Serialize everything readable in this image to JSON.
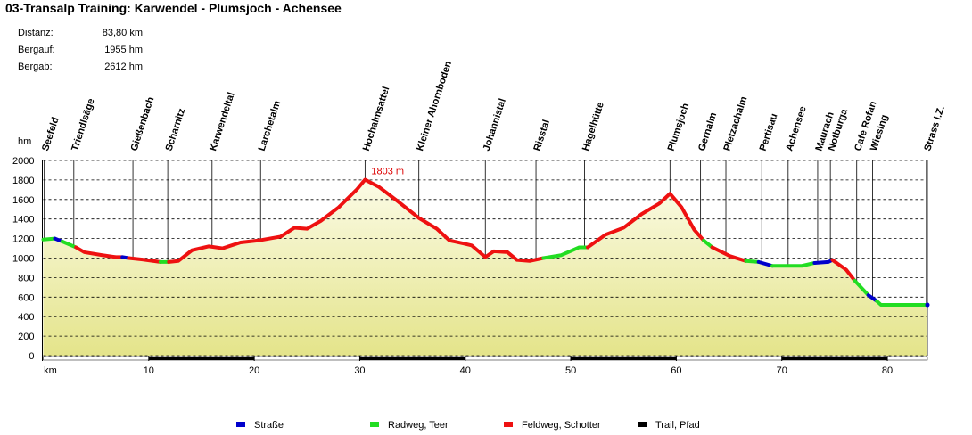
{
  "chart_data": {
    "type": "elevation-profile",
    "title": "03-Transalp Training: Karwendel - Plumsjoch - Achensee",
    "stats": [
      {
        "label": "Distanz:",
        "value": "83,80 km"
      },
      {
        "label": "Bergauf:",
        "value": "1955 hm"
      },
      {
        "label": "Bergab:",
        "value": "2612 hm"
      }
    ],
    "ylabel": "hm",
    "xlabel": "km",
    "xlim": [
      0,
      83.8
    ],
    "ylim": [
      0,
      2000
    ],
    "xticks": [
      10,
      20,
      30,
      40,
      50,
      60,
      70,
      80
    ],
    "yticks": [
      0,
      200,
      400,
      600,
      800,
      1000,
      1200,
      1400,
      1600,
      1800,
      2000
    ],
    "grid": true,
    "legend": [
      {
        "name": "Straße",
        "color": "#0000cc"
      },
      {
        "name": "Radweg, Teer",
        "color": "#22dd22"
      },
      {
        "name": "Feldweg, Schotter",
        "color": "#ee1111"
      },
      {
        "name": "Trail, Pfad",
        "color": "#000000"
      }
    ],
    "annotation": {
      "text": "1803 m",
      "x": 30.5,
      "y": 1803,
      "color": "#dd0000"
    },
    "waypoints": [
      {
        "label": "Seefeld",
        "x": 0.1
      },
      {
        "label": "Triendlsäge",
        "x": 2.9
      },
      {
        "label": "Gießenbach",
        "x": 8.5
      },
      {
        "label": "Scharnitz",
        "x": 11.8
      },
      {
        "label": "Karwendeltal",
        "x": 16.0
      },
      {
        "label": "Larchetalm",
        "x": 20.6
      },
      {
        "label": "Hochalmsattel",
        "x": 30.5
      },
      {
        "label": "Kleiner Ahornboden",
        "x": 35.6
      },
      {
        "label": "Johannistal",
        "x": 41.9
      },
      {
        "label": "Risstal",
        "x": 46.7
      },
      {
        "label": "Hagelhütte",
        "x": 51.3
      },
      {
        "label": "Plumsjoch",
        "x": 59.4
      },
      {
        "label": "Gernalm",
        "x": 62.3
      },
      {
        "label": "Pletzachalm",
        "x": 64.7
      },
      {
        "label": "Pertisau",
        "x": 68.1
      },
      {
        "label": "Achensee",
        "x": 70.6
      },
      {
        "label": "Maurach",
        "x": 73.4
      },
      {
        "label": "Notburga",
        "x": 74.6
      },
      {
        "label": "Cafe Rofan",
        "x": 77.1
      },
      {
        "label": "Wiesing",
        "x": 78.6
      },
      {
        "label": "Strass i.Z.",
        "x": 83.7
      }
    ],
    "profile": {
      "x": [
        0,
        1.1,
        1.8,
        3.1,
        3.9,
        5.6,
        6.9,
        7.5,
        8.1,
        9.4,
        11.1,
        11.9,
        12.8,
        14.1,
        15.7,
        17.0,
        18.7,
        20.4,
        22.5,
        23.8,
        25.0,
        26.3,
        28.0,
        29.7,
        30.5,
        31.8,
        33.5,
        35.6,
        37.3,
        38.5,
        39.8,
        40.6,
        41.9,
        42.7,
        44.0,
        44.9,
        46.1,
        47.4,
        49.1,
        50.8,
        51.6,
        53.3,
        55.0,
        56.7,
        58.4,
        59.4,
        60.5,
        61.7,
        62.6,
        63.4,
        65.1,
        66.6,
        67.8,
        69.1,
        71.9,
        73.1,
        74.4,
        74.8,
        76.1,
        76.9,
        78.2,
        79.0,
        79.4,
        83.8
      ],
      "values": [
        1190,
        1200,
        1170,
        1110,
        1060,
        1030,
        1010,
        1010,
        1000,
        985,
        960,
        960,
        970,
        1080,
        1120,
        1100,
        1160,
        1180,
        1220,
        1310,
        1300,
        1380,
        1520,
        1700,
        1803,
        1730,
        1590,
        1410,
        1300,
        1180,
        1150,
        1130,
        1010,
        1070,
        1060,
        980,
        970,
        1000,
        1030,
        1110,
        1110,
        1240,
        1310,
        1450,
        1560,
        1660,
        1520,
        1290,
        1180,
        1110,
        1020,
        970,
        960,
        920,
        920,
        950,
        960,
        980,
        880,
        770,
        620,
        560,
        520,
        520
      ],
      "surface": [
        1,
        0,
        1,
        2,
        2,
        2,
        2,
        0,
        2,
        2,
        1,
        2,
        2,
        2,
        2,
        2,
        2,
        2,
        2,
        2,
        2,
        2,
        2,
        2,
        2,
        2,
        2,
        2,
        2,
        2,
        2,
        2,
        2,
        2,
        2,
        2,
        2,
        1,
        1,
        1,
        2,
        2,
        2,
        2,
        2,
        2,
        2,
        2,
        1,
        2,
        2,
        1,
        0,
        1,
        1,
        0,
        0,
        2,
        2,
        1,
        0,
        1,
        1,
        1
      ]
    }
  }
}
